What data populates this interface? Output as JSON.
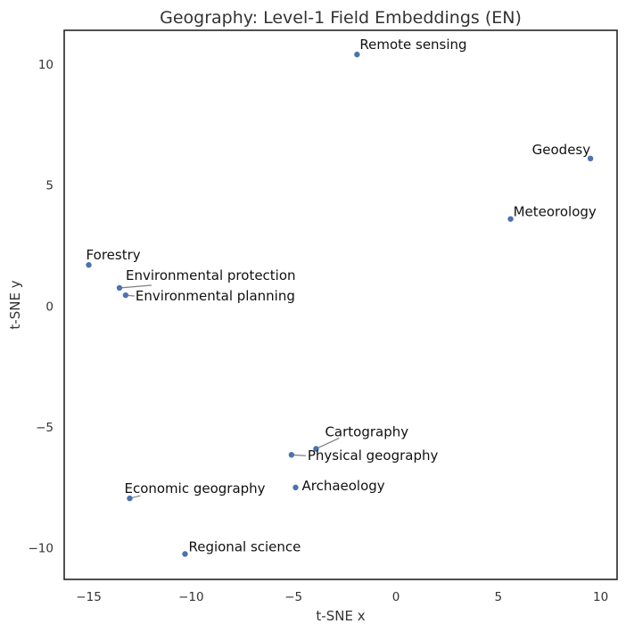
{
  "chart_data": {
    "type": "scatter",
    "title": "Geography: Level-1 Field Embeddings (EN)",
    "xlabel": "t-SNE x",
    "ylabel": "t-SNE y",
    "xlim": [
      -16.2,
      10.8
    ],
    "ylim": [
      -11.3,
      11.4
    ],
    "xticks": [
      -15,
      -10,
      -5,
      0,
      5,
      10
    ],
    "yticks": [
      -10,
      -5,
      0,
      5,
      10
    ],
    "grid": false,
    "color": "#4c72b0",
    "points": [
      {
        "label": "Remote sensing",
        "x": -1.9,
        "y": 10.4
      },
      {
        "label": "Geodesy",
        "x": 9.5,
        "y": 6.1
      },
      {
        "label": "Meteorology",
        "x": 5.6,
        "y": 3.6
      },
      {
        "label": "Forestry",
        "x": -15.0,
        "y": 1.7
      },
      {
        "label": "Environmental protection",
        "x": -13.5,
        "y": 0.75
      },
      {
        "label": "Environmental planning",
        "x": -13.2,
        "y": 0.45
      },
      {
        "label": "Cartography",
        "x": -3.9,
        "y": -5.9
      },
      {
        "label": "Physical geography",
        "x": -5.1,
        "y": -6.15
      },
      {
        "label": "Archaeology",
        "x": -4.9,
        "y": -7.5
      },
      {
        "label": "Economic geography",
        "x": -13.0,
        "y": -7.95
      },
      {
        "label": "Regional science",
        "x": -10.3,
        "y": -10.25
      }
    ]
  }
}
